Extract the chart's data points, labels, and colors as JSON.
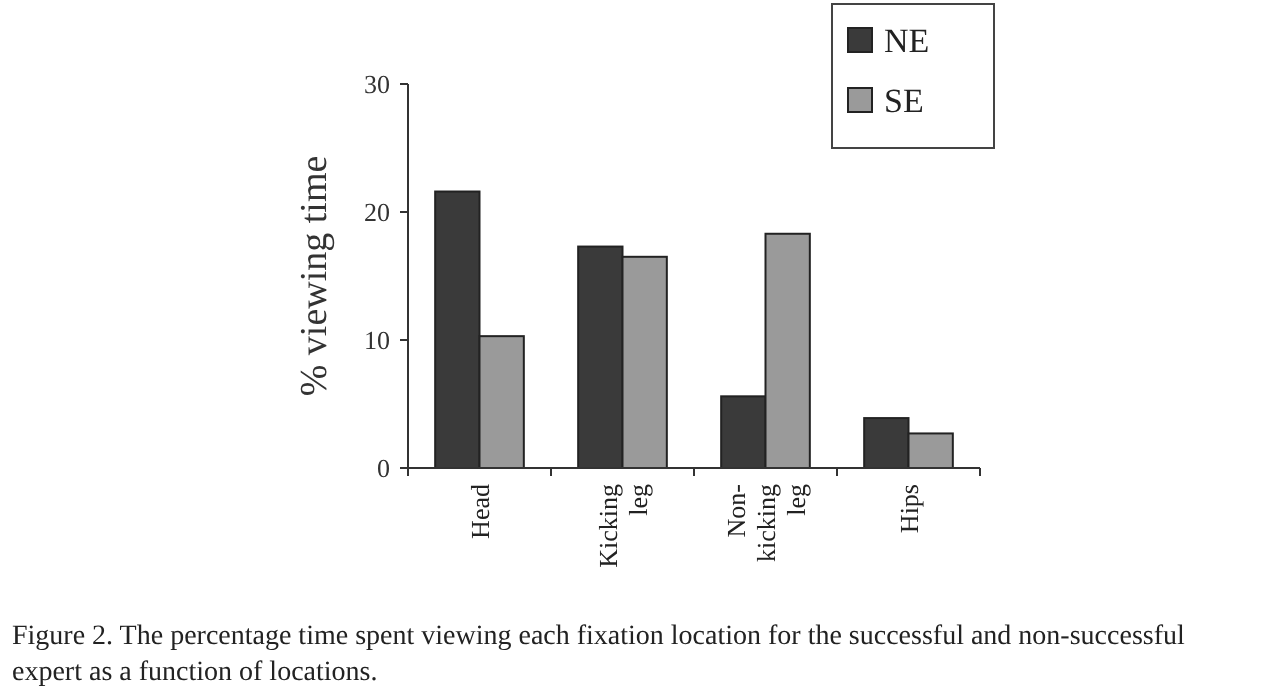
{
  "chart_data": {
    "type": "bar",
    "ylabel": "% viewing time",
    "categories": [
      "Head",
      "Kicking\nleg",
      "Non-\nkicking\nleg",
      "Hips"
    ],
    "series": [
      {
        "name": "NE",
        "color": "#3a3a3a",
        "values": [
          21.6,
          17.3,
          5.6,
          3.9
        ]
      },
      {
        "name": "SE",
        "color": "#9a9a9a",
        "values": [
          10.3,
          16.5,
          18.3,
          2.7
        ]
      }
    ],
    "ylim": [
      0,
      30
    ],
    "yticks": [
      0,
      10,
      20,
      30
    ],
    "grid": false,
    "legend": "top right",
    "annotations": [
      "Figure 2.   The percentage time spent viewing each fixation location for the successful and non-successful expert as a function of locations."
    ]
  }
}
